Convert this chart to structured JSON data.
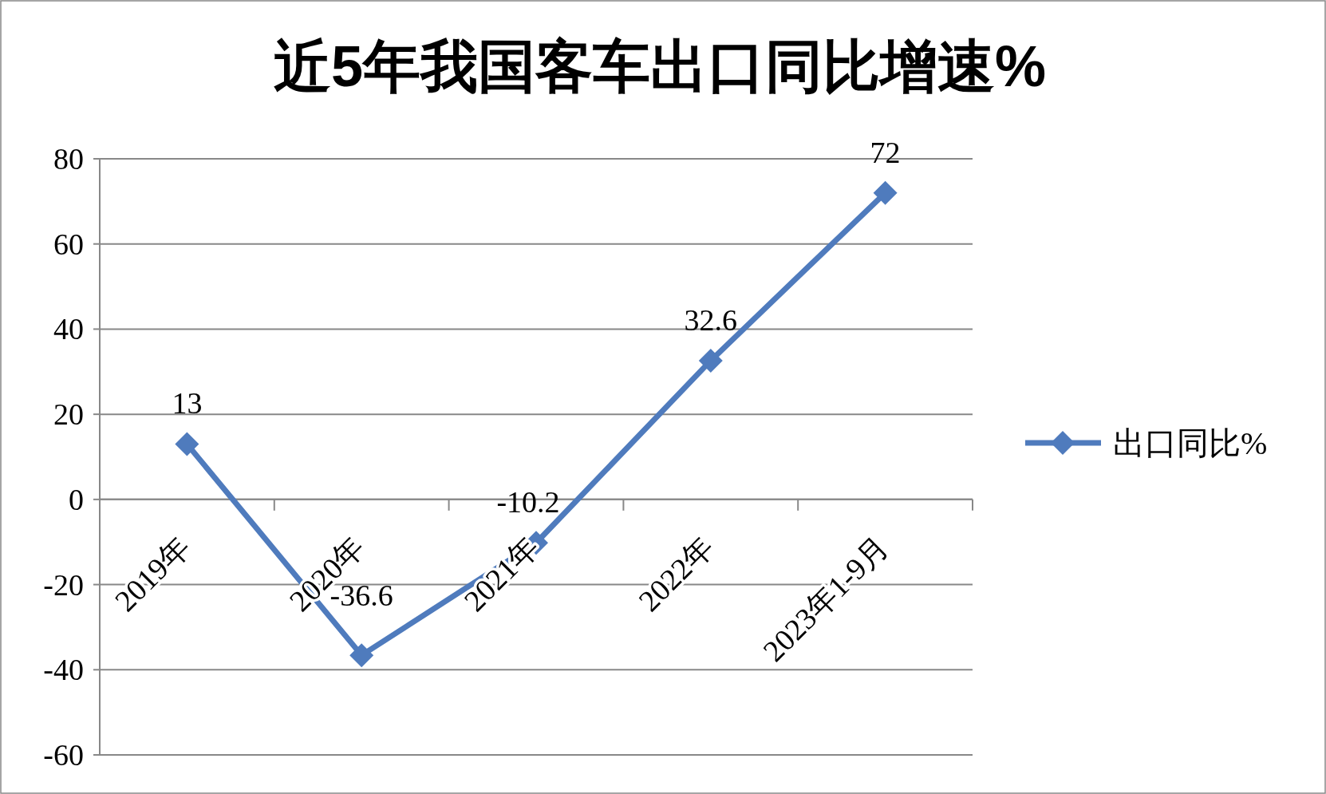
{
  "chart_data": {
    "type": "line",
    "title": "近5年我国客车出口同比增速%",
    "categories": [
      "2019年",
      "2020年",
      "2021年",
      "2022年",
      "2023年1-9月"
    ],
    "series": [
      {
        "name": "出口同比%",
        "color": "#4f7bbd",
        "values": [
          13,
          -36.6,
          -10.2,
          32.6,
          72
        ]
      }
    ],
    "ylim": [
      -60,
      80
    ],
    "yticks": [
      -60,
      -40,
      -20,
      0,
      20,
      40,
      60,
      80
    ],
    "grid": "y",
    "legend": "right",
    "marker": "diamond",
    "data_labels": true
  }
}
